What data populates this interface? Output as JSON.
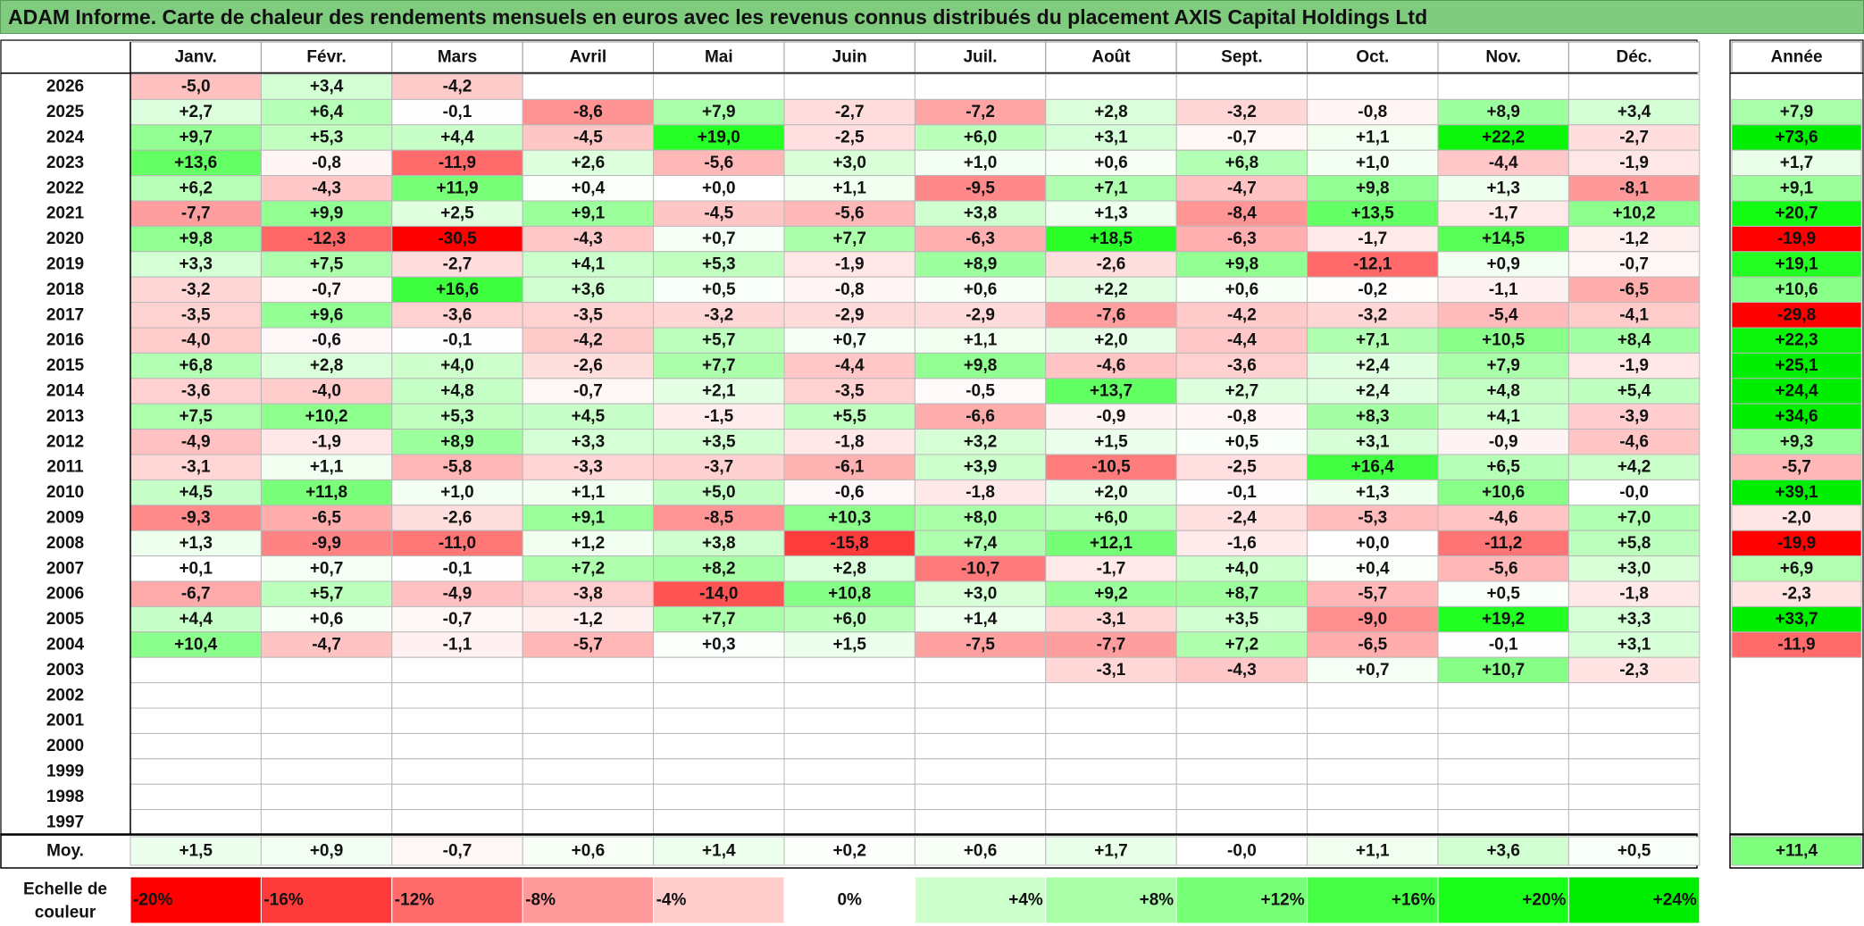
{
  "title": "ADAM Informe. Carte de chaleur des rendements mensuels en euros avec les revenus connus distribués du placement AXIS Capital Holdings Ltd",
  "chart_data": {
    "type": "heatmap",
    "months": [
      "Janv.",
      "Févr.",
      "Mars",
      "Avril",
      "Mai",
      "Juin",
      "Juil.",
      "Août",
      "Sept.",
      "Oct.",
      "Nov.",
      "Déc."
    ],
    "year_header": "Année",
    "avg_label": "Moy.",
    "scale_label": "Echelle de couleur",
    "rows": [
      {
        "year": "2026",
        "values": [
          "-5,0",
          "+3,4",
          "-4,2",
          "",
          "",
          "",
          "",
          "",
          "",
          "",
          "",
          ""
        ],
        "annual": ""
      },
      {
        "year": "2025",
        "values": [
          "+2,7",
          "+6,4",
          "-0,1",
          "-8,6",
          "+7,9",
          "-2,7",
          "-7,2",
          "+2,8",
          "-3,2",
          "-0,8",
          "+8,9",
          "+3,4"
        ],
        "annual": "+7,9"
      },
      {
        "year": "2024",
        "values": [
          "+9,7",
          "+5,3",
          "+4,4",
          "-4,5",
          "+19,0",
          "-2,5",
          "+6,0",
          "+3,1",
          "-0,7",
          "+1,1",
          "+22,2",
          "-2,7"
        ],
        "annual": "+73,6"
      },
      {
        "year": "2023",
        "values": [
          "+13,6",
          "-0,8",
          "-11,9",
          "+2,6",
          "-5,6",
          "+3,0",
          "+1,0",
          "+0,6",
          "+6,8",
          "+1,0",
          "-4,4",
          "-1,9"
        ],
        "annual": "+1,7"
      },
      {
        "year": "2022",
        "values": [
          "+6,2",
          "-4,3",
          "+11,9",
          "+0,4",
          "+0,0",
          "+1,1",
          "-9,5",
          "+7,1",
          "-4,7",
          "+9,8",
          "+1,3",
          "-8,1"
        ],
        "annual": "+9,1"
      },
      {
        "year": "2021",
        "values": [
          "-7,7",
          "+9,9",
          "+2,5",
          "+9,1",
          "-4,5",
          "-5,6",
          "+3,8",
          "+1,3",
          "-8,4",
          "+13,5",
          "-1,7",
          "+10,2"
        ],
        "annual": "+20,7"
      },
      {
        "year": "2020",
        "values": [
          "+9,8",
          "-12,3",
          "-30,5",
          "-4,3",
          "+0,7",
          "+7,7",
          "-6,3",
          "+18,5",
          "-6,3",
          "-1,7",
          "+14,5",
          "-1,2"
        ],
        "annual": "-19,9"
      },
      {
        "year": "2019",
        "values": [
          "+3,3",
          "+7,5",
          "-2,7",
          "+4,1",
          "+5,3",
          "-1,9",
          "+8,9",
          "-2,6",
          "+9,8",
          "-12,1",
          "+0,9",
          "-0,7"
        ],
        "annual": "+19,1"
      },
      {
        "year": "2018",
        "values": [
          "-3,2",
          "-0,7",
          "+16,6",
          "+3,6",
          "+0,5",
          "-0,8",
          "+0,6",
          "+2,2",
          "+0,6",
          "-0,2",
          "-1,1",
          "-6,5"
        ],
        "annual": "+10,6"
      },
      {
        "year": "2017",
        "values": [
          "-3,5",
          "+9,6",
          "-3,6",
          "-3,5",
          "-3,2",
          "-2,9",
          "-2,9",
          "-7,6",
          "-4,2",
          "-3,2",
          "-5,4",
          "-4,1"
        ],
        "annual": "-29,8"
      },
      {
        "year": "2016",
        "values": [
          "-4,0",
          "-0,6",
          "-0,1",
          "-4,2",
          "+5,7",
          "+0,7",
          "+1,1",
          "+2,0",
          "-4,4",
          "+7,1",
          "+10,5",
          "+8,4"
        ],
        "annual": "+22,3"
      },
      {
        "year": "2015",
        "values": [
          "+6,8",
          "+2,8",
          "+4,0",
          "-2,6",
          "+7,7",
          "-4,4",
          "+9,8",
          "-4,6",
          "-3,6",
          "+2,4",
          "+7,9",
          "-1,9"
        ],
        "annual": "+25,1"
      },
      {
        "year": "2014",
        "values": [
          "-3,6",
          "-4,0",
          "+4,8",
          "-0,7",
          "+2,1",
          "-3,5",
          "-0,5",
          "+13,7",
          "+2,7",
          "+2,4",
          "+4,8",
          "+5,4"
        ],
        "annual": "+24,4"
      },
      {
        "year": "2013",
        "values": [
          "+7,5",
          "+10,2",
          "+5,3",
          "+4,5",
          "-1,5",
          "+5,5",
          "-6,6",
          "-0,9",
          "-0,8",
          "+8,3",
          "+4,1",
          "-3,9"
        ],
        "annual": "+34,6"
      },
      {
        "year": "2012",
        "values": [
          "-4,9",
          "-1,9",
          "+8,9",
          "+3,3",
          "+3,5",
          "-1,8",
          "+3,2",
          "+1,5",
          "+0,5",
          "+3,1",
          "-0,9",
          "-4,6"
        ],
        "annual": "+9,3"
      },
      {
        "year": "2011",
        "values": [
          "-3,1",
          "+1,1",
          "-5,8",
          "-3,3",
          "-3,7",
          "-6,1",
          "+3,9",
          "-10,5",
          "-2,5",
          "+16,4",
          "+6,5",
          "+4,2"
        ],
        "annual": "-5,7"
      },
      {
        "year": "2010",
        "values": [
          "+4,5",
          "+11,8",
          "+1,0",
          "+1,1",
          "+5,0",
          "-0,6",
          "-1,8",
          "+2,0",
          "-0,1",
          "+1,3",
          "+10,6",
          "-0,0"
        ],
        "annual": "+39,1"
      },
      {
        "year": "2009",
        "values": [
          "-9,3",
          "-6,5",
          "-2,6",
          "+9,1",
          "-8,5",
          "+10,3",
          "+8,0",
          "+6,0",
          "-2,4",
          "-5,3",
          "-4,6",
          "+7,0"
        ],
        "annual": "-2,0"
      },
      {
        "year": "2008",
        "values": [
          "+1,3",
          "-9,9",
          "-11,0",
          "+1,2",
          "+3,8",
          "-15,8",
          "+7,4",
          "+12,1",
          "-1,6",
          "+0,0",
          "-11,2",
          "+5,8"
        ],
        "annual": "-19,9"
      },
      {
        "year": "2007",
        "values": [
          "+0,1",
          "+0,7",
          "-0,1",
          "+7,2",
          "+8,2",
          "+2,8",
          "-10,7",
          "-1,7",
          "+4,0",
          "+0,4",
          "-5,6",
          "+3,0"
        ],
        "annual": "+6,9"
      },
      {
        "year": "2006",
        "values": [
          "-6,7",
          "+5,7",
          "-4,9",
          "-3,8",
          "-14,0",
          "+10,8",
          "+3,0",
          "+9,2",
          "+8,7",
          "-5,7",
          "+0,5",
          "-1,8"
        ],
        "annual": "-2,3"
      },
      {
        "year": "2005",
        "values": [
          "+4,4",
          "+0,6",
          "-0,7",
          "-1,2",
          "+7,7",
          "+6,0",
          "+1,4",
          "-3,1",
          "+3,5",
          "-9,0",
          "+19,2",
          "+3,3"
        ],
        "annual": "+33,7"
      },
      {
        "year": "2004",
        "values": [
          "+10,4",
          "-4,7",
          "-1,1",
          "-5,7",
          "+0,3",
          "+1,5",
          "-7,5",
          "-7,7",
          "+7,2",
          "-6,5",
          "-0,1",
          "+3,1"
        ],
        "annual": "-11,9"
      },
      {
        "year": "2003",
        "values": [
          "",
          "",
          "",
          "",
          "",
          "",
          "",
          "-3,1",
          "-4,3",
          "+0,7",
          "+10,7",
          "-2,3"
        ],
        "annual": ""
      },
      {
        "year": "2002",
        "values": [
          "",
          "",
          "",
          "",
          "",
          "",
          "",
          "",
          "",
          "",
          "",
          ""
        ],
        "annual": ""
      },
      {
        "year": "2001",
        "values": [
          "",
          "",
          "",
          "",
          "",
          "",
          "",
          "",
          "",
          "",
          "",
          ""
        ],
        "annual": ""
      },
      {
        "year": "2000",
        "values": [
          "",
          "",
          "",
          "",
          "",
          "",
          "",
          "",
          "",
          "",
          "",
          ""
        ],
        "annual": ""
      },
      {
        "year": "1999",
        "values": [
          "",
          "",
          "",
          "",
          "",
          "",
          "",
          "",
          "",
          "",
          "",
          ""
        ],
        "annual": ""
      },
      {
        "year": "1998",
        "values": [
          "",
          "",
          "",
          "",
          "",
          "",
          "",
          "",
          "",
          "",
          "",
          ""
        ],
        "annual": ""
      },
      {
        "year": "1997",
        "values": [
          "",
          "",
          "",
          "",
          "",
          "",
          "",
          "",
          "",
          "",
          "",
          ""
        ],
        "annual": ""
      }
    ],
    "averages": [
      "+1,5",
      "+0,9",
      "-0,7",
      "+0,6",
      "+1,4",
      "+0,2",
      "+0,6",
      "+1,7",
      "-0,0",
      "+1,1",
      "+3,6",
      "+0,5"
    ],
    "average_annual": "+11,4",
    "scale": [
      {
        "label": "-20%",
        "value": -20,
        "color": "#ff0000"
      },
      {
        "label": "-16%",
        "value": -16,
        "color": "#ff3a3a"
      },
      {
        "label": "-12%",
        "value": -12,
        "color": "#ff6a6a"
      },
      {
        "label": "-8%",
        "value": -8,
        "color": "#ff9a9a"
      },
      {
        "label": "-4%",
        "value": -4,
        "color": "#ffcccc"
      },
      {
        "label": "0%",
        "value": 0,
        "color": "#ffffff"
      },
      {
        "label": "+4%",
        "value": 4,
        "color": "#ccffcc"
      },
      {
        "label": "+8%",
        "value": 8,
        "color": "#a8ffa8"
      },
      {
        "label": "+12%",
        "value": 12,
        "color": "#77ff77"
      },
      {
        "label": "+16%",
        "value": 16,
        "color": "#44ff44"
      },
      {
        "label": "+20%",
        "value": 20,
        "color": "#1aff1a"
      },
      {
        "label": "+24%",
        "value": 24,
        "color": "#00ee00"
      }
    ]
  }
}
